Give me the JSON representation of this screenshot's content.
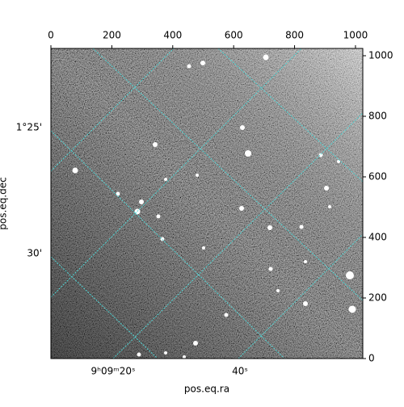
{
  "chart_data": {
    "type": "image",
    "xlabel": "pos.eq.ra",
    "ylabel": "pos.eq.dec",
    "xlim": [
      0,
      1024
    ],
    "ylim": [
      0,
      1024
    ],
    "xticks": [
      0,
      200,
      400,
      600,
      800,
      1000
    ],
    "yticks": [
      0,
      200,
      400,
      600,
      800,
      1000
    ],
    "ra_ticks": [
      "9ʰ09ᵐ20ˢ",
      "40ˢ"
    ],
    "dec_ticks": [
      "1°25'",
      "30'"
    ],
    "grid_color": "#4fd6d6"
  }
}
